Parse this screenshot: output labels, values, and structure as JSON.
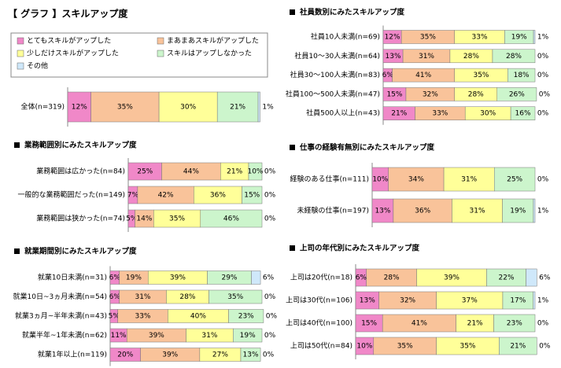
{
  "title": "【 グラフ 】スキルアップ度",
  "chart_data": [
    {
      "type": "bar",
      "categories": [
        "全体(n=319)"
      ],
      "xlim": [
        0,
        100
      ],
      "series": [
        {
          "name": "とてもスキルがアップした",
          "color": "#f088c8",
          "values": [
            12
          ],
          "value_labels": [
            "12%"
          ]
        },
        {
          "name": "まあまあスキルがアップした",
          "color": "#f9c39a",
          "values": [
            35
          ],
          "value_labels": [
            "35%"
          ]
        },
        {
          "name": "少しだけスキルがアップした",
          "color": "#ffff99",
          "values": [
            30
          ],
          "value_labels": [
            "30%"
          ]
        },
        {
          "name": "スキルはアップしなかった",
          "color": "#ccf5cc",
          "values": [
            21
          ],
          "value_labels": [
            "21%"
          ]
        },
        {
          "name": "その他",
          "color": "#cfe8fa",
          "values": [
            1
          ],
          "value_labels": [
            "1%"
          ]
        }
      ]
    },
    {
      "type": "bar",
      "title": "業務範囲別にみたスキルアップ度",
      "xlim": [
        0,
        100
      ],
      "categories": [
        "業務範囲は広かった(n=84)",
        "一般的な業務範囲だった(n=149)",
        "業務範囲は狭かった(n=74)"
      ],
      "series": [
        {
          "values": [
            25,
            7,
            5
          ],
          "value_labels": [
            "25%",
            "7%",
            "5%"
          ]
        },
        {
          "values": [
            44,
            42,
            14
          ],
          "value_labels": [
            "44%",
            "42%",
            "14%"
          ]
        },
        {
          "values": [
            21,
            36,
            35
          ],
          "value_labels": [
            "21%",
            "36%",
            "35%"
          ]
        },
        {
          "values": [
            10,
            15,
            46
          ],
          "value_labels": [
            "10%",
            "15%",
            "46%"
          ]
        },
        {
          "values": [
            0,
            0,
            0
          ],
          "value_labels": [
            "0%",
            "0%",
            "0%"
          ]
        }
      ]
    },
    {
      "type": "bar",
      "title": "就業期間別にみたスキルアップ度",
      "xlim": [
        0,
        100
      ],
      "categories": [
        "就業10日未満(n=31)",
        "就業10日~3ヵ月未満(n=54)",
        "就業3ヵ月~半年未満(n=43)",
        "就業半年~1年未満(n=62)",
        "就業1年以上(n=119)"
      ],
      "series": [
        {
          "values": [
            6,
            6,
            5,
            11,
            20
          ],
          "value_labels": [
            "6%",
            "6%",
            "5%",
            "11%",
            "20%"
          ]
        },
        {
          "values": [
            19,
            31,
            33,
            39,
            39
          ],
          "value_labels": [
            "19%",
            "31%",
            "33%",
            "39%",
            "39%"
          ]
        },
        {
          "values": [
            39,
            28,
            40,
            31,
            27
          ],
          "value_labels": [
            "39%",
            "28%",
            "40%",
            "31%",
            "27%"
          ]
        },
        {
          "values": [
            29,
            35,
            23,
            19,
            13
          ],
          "value_labels": [
            "29%",
            "35%",
            "23%",
            "19%",
            "13%"
          ]
        },
        {
          "values": [
            6,
            0,
            0,
            0,
            0
          ],
          "value_labels": [
            "6%",
            "0%",
            "0%",
            "0%",
            "0%"
          ]
        }
      ]
    },
    {
      "type": "bar",
      "title": "社員数別にみたスキルアップ度",
      "xlim": [
        0,
        100
      ],
      "categories": [
        "社員10人未満(n=69)",
        "社員10～30人未満(n=64)",
        "社員30～100人未満(n=83)",
        "社員100～500人未満(n=47)",
        "社員500人以上(n=43)"
      ],
      "series": [
        {
          "values": [
            12,
            13,
            6,
            15,
            21
          ],
          "value_labels": [
            "12%",
            "13%",
            "6%",
            "15%",
            "21%"
          ]
        },
        {
          "values": [
            35,
            31,
            41,
            32,
            33
          ],
          "value_labels": [
            "35%",
            "31%",
            "41%",
            "32%",
            "33%"
          ]
        },
        {
          "values": [
            33,
            28,
            35,
            28,
            30
          ],
          "value_labels": [
            "33%",
            "28%",
            "35%",
            "28%",
            "30%"
          ]
        },
        {
          "values": [
            19,
            28,
            18,
            26,
            16
          ],
          "value_labels": [
            "19%",
            "28%",
            "18%",
            "26%",
            "16%"
          ]
        },
        {
          "values": [
            1,
            0,
            0,
            0,
            0
          ],
          "value_labels": [
            "1%",
            "0%",
            "0%",
            "0%",
            "0%"
          ]
        }
      ]
    },
    {
      "type": "bar",
      "title": "仕事の経験有無別にみたスキルアップ度",
      "xlim": [
        0,
        100
      ],
      "categories": [
        "経験のある仕事(n=111)",
        "未経験の仕事(n=197)"
      ],
      "series": [
        {
          "values": [
            10,
            13
          ],
          "value_labels": [
            "10%",
            "13%"
          ]
        },
        {
          "values": [
            34,
            36
          ],
          "value_labels": [
            "34%",
            "36%"
          ]
        },
        {
          "values": [
            31,
            31
          ],
          "value_labels": [
            "31%",
            "31%"
          ]
        },
        {
          "values": [
            25,
            19
          ],
          "value_labels": [
            "25%",
            "19%"
          ]
        },
        {
          "values": [
            0,
            1
          ],
          "value_labels": [
            "0%",
            "1%"
          ]
        }
      ]
    },
    {
      "type": "bar",
      "title": "上司の年代別にみたスキルアップ度",
      "xlim": [
        0,
        100
      ],
      "categories": [
        "上司は20代(n=18)",
        "上司は30代(n=106)",
        "上司は40代(n=100)",
        "上司は50代(n=84)"
      ],
      "series": [
        {
          "values": [
            6,
            13,
            15,
            10
          ],
          "value_labels": [
            "6%",
            "13%",
            "15%",
            "10%"
          ]
        },
        {
          "values": [
            28,
            32,
            41,
            35
          ],
          "value_labels": [
            "28%",
            "32%",
            "41%",
            "35%"
          ]
        },
        {
          "values": [
            39,
            37,
            21,
            35
          ],
          "value_labels": [
            "39%",
            "37%",
            "21%",
            "35%"
          ]
        },
        {
          "values": [
            22,
            17,
            23,
            21
          ],
          "value_labels": [
            "22%",
            "17%",
            "23%",
            "21%"
          ]
        },
        {
          "values": [
            6,
            1,
            0,
            0
          ],
          "value_labels": [
            "6%",
            "1%",
            "0%",
            "0%"
          ]
        }
      ]
    }
  ]
}
